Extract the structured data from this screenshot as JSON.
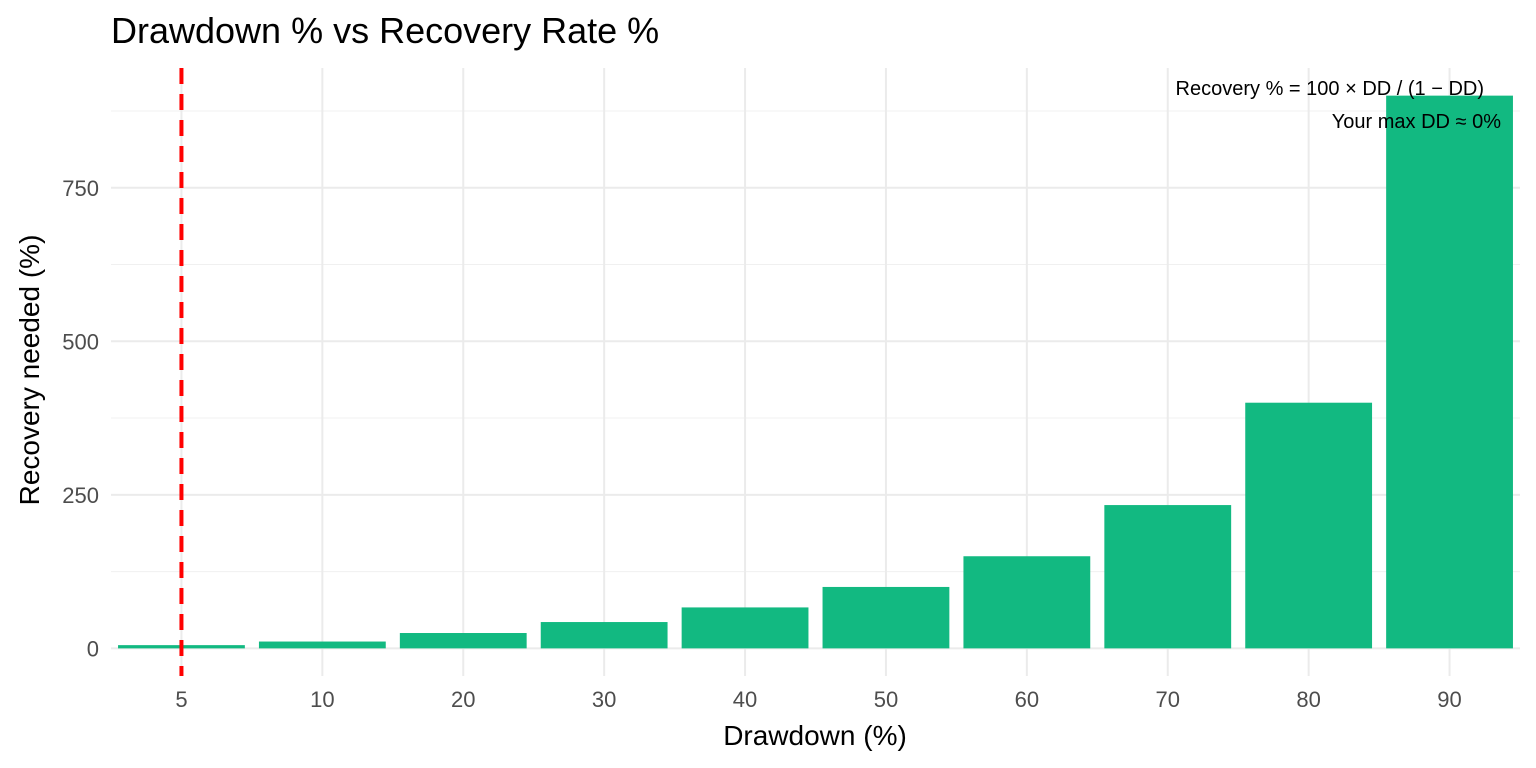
{
  "chart_data": {
    "type": "bar",
    "title": "Drawdown % vs Recovery Rate %",
    "xlabel": "Drawdown (%)",
    "ylabel": "Recovery needed (%)",
    "categories": [
      "5",
      "10",
      "20",
      "30",
      "40",
      "50",
      "60",
      "70",
      "80",
      "90"
    ],
    "values": [
      5.26,
      11.11,
      25,
      42.86,
      66.67,
      100,
      150,
      233.33,
      400,
      900
    ],
    "ylim": [
      -45,
      945
    ],
    "yticks": [
      0,
      250,
      500,
      750
    ],
    "grid": true,
    "bar_color": "#12b981",
    "reference_line": {
      "category": "5",
      "color": "#ff0000",
      "style": "dashed"
    },
    "annotations": [
      "Recovery % = 100 × DD / (1 − DD)",
      "Your max DD ≈ 0%"
    ]
  }
}
